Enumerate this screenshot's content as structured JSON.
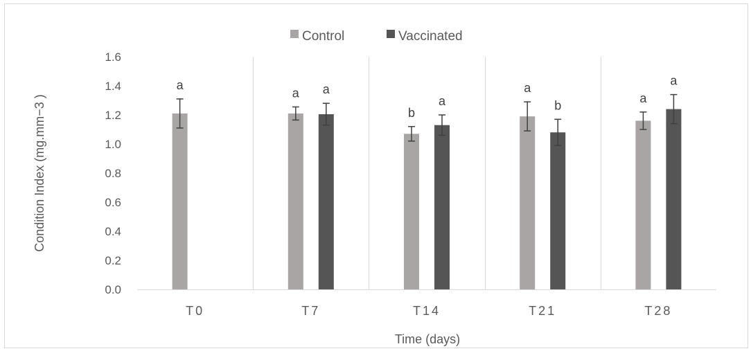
{
  "chart_data": {
    "type": "bar",
    "categories": [
      "T0",
      "T7",
      "T14",
      "T21",
      "T28"
    ],
    "series": [
      {
        "name": "Control",
        "color": "#a9a5a5",
        "values": [
          1.21,
          1.21,
          1.07,
          1.19,
          1.16
        ],
        "errors": [
          0.1,
          0.045,
          0.05,
          0.1,
          0.06
        ],
        "labels": [
          "a",
          "a",
          "b",
          "a",
          "a"
        ]
      },
      {
        "name": "Vaccinated",
        "color": "#555555",
        "values": [
          null,
          1.205,
          1.13,
          1.08,
          1.24
        ],
        "errors": [
          null,
          0.075,
          0.07,
          0.09,
          0.1
        ],
        "labels": [
          null,
          "a",
          "a",
          "b",
          "a"
        ]
      }
    ],
    "xlabel": "Time (days)",
    "ylabel": "Condition Index (mg.mm−3 )",
    "ylim": [
      0,
      1.6
    ],
    "yticks": [
      "0.0",
      "0.2",
      "0.4",
      "0.6",
      "0.8",
      "1.0",
      "1.2",
      "1.4",
      "1.6"
    ],
    "grid": false,
    "category_separators": true,
    "legend_position": "top-center"
  }
}
